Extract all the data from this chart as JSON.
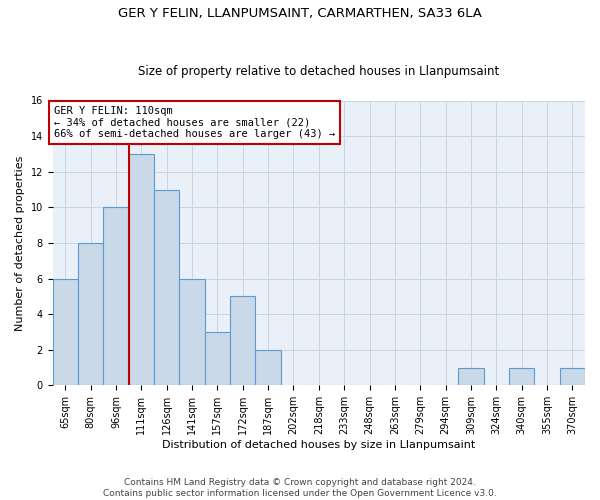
{
  "title1": "GER Y FELIN, LLANPUMSAINT, CARMARTHEN, SA33 6LA",
  "title2": "Size of property relative to detached houses in Llanpumsaint",
  "xlabel": "Distribution of detached houses by size in Llanpumsaint",
  "ylabel": "Number of detached properties",
  "categories": [
    "65sqm",
    "80sqm",
    "96sqm",
    "111sqm",
    "126sqm",
    "141sqm",
    "157sqm",
    "172sqm",
    "187sqm",
    "202sqm",
    "218sqm",
    "233sqm",
    "248sqm",
    "263sqm",
    "279sqm",
    "294sqm",
    "309sqm",
    "324sqm",
    "340sqm",
    "355sqm",
    "370sqm"
  ],
  "values": [
    6,
    8,
    10,
    13,
    11,
    6,
    3,
    5,
    2,
    0,
    0,
    0,
    0,
    0,
    0,
    0,
    1,
    0,
    1,
    0,
    1
  ],
  "bar_color": "#c9d9e8",
  "bar_edge_color": "#5b9bd5",
  "grid_color": "#c8d4e4",
  "background_color": "#eaf0f8",
  "annotation_box_color": "#c00000",
  "vline_color": "#c00000",
  "vline_x_index": 3,
  "annotation_text": "GER Y FELIN: 110sqm\n← 34% of detached houses are smaller (22)\n66% of semi-detached houses are larger (43) →",
  "ylim": [
    0,
    16
  ],
  "yticks": [
    0,
    2,
    4,
    6,
    8,
    10,
    12,
    14,
    16
  ],
  "footnote": "Contains HM Land Registry data © Crown copyright and database right 2024.\nContains public sector information licensed under the Open Government Licence v3.0.",
  "title1_fontsize": 9.5,
  "title2_fontsize": 8.5,
  "xlabel_fontsize": 8,
  "ylabel_fontsize": 8,
  "tick_fontsize": 7,
  "annotation_fontsize": 7.5,
  "footnote_fontsize": 6.5
}
